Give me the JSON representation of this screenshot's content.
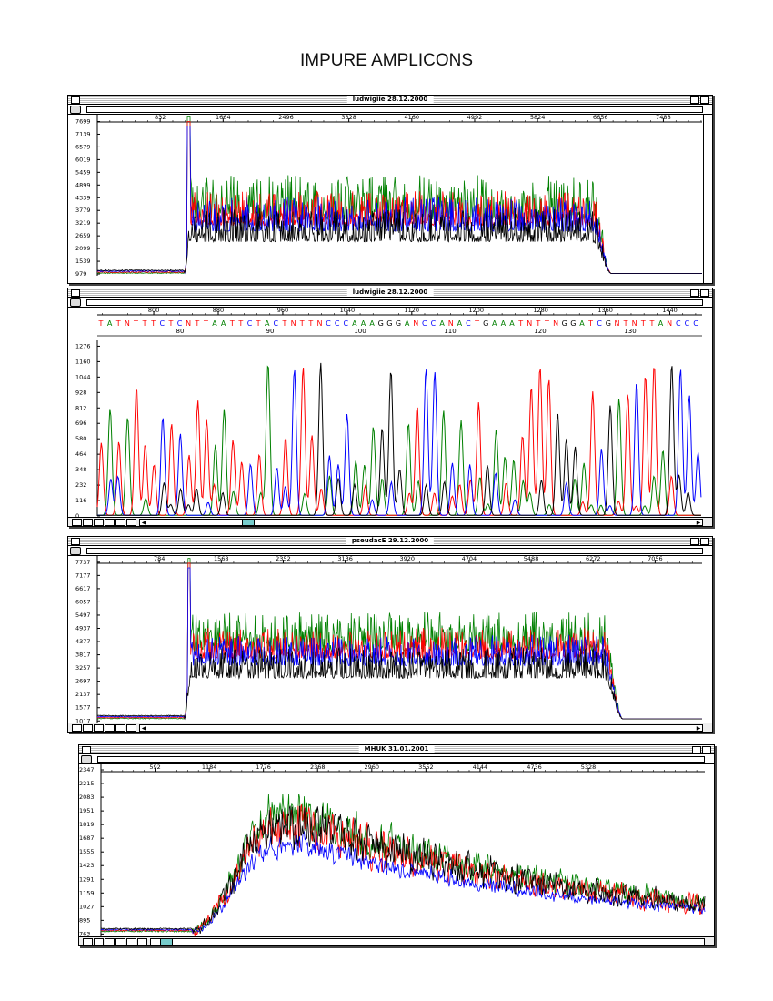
{
  "page": {
    "title": "IMPURE AMPLICONS"
  },
  "chart_data": [
    {
      "type": "line",
      "title": "ludwigiie  28.12.2000",
      "x_ticks": [
        "832",
        "1664",
        "2496",
        "3328",
        "4160",
        "4992",
        "5824",
        "6656",
        "7488"
      ],
      "y_ticks": [
        "979",
        "1539",
        "2099",
        "2659",
        "3219",
        "3779",
        "4339",
        "4899",
        "5459",
        "6019",
        "6579",
        "7139",
        "7699"
      ],
      "xlim": [
        0,
        8000
      ],
      "ylim": [
        900,
        8000
      ],
      "series": [
        {
          "color": "#008000"
        },
        {
          "color": "#ff0000"
        },
        {
          "color": "#0000ff"
        },
        {
          "color": "#000000"
        }
      ],
      "seed": 11,
      "shape": {
        "start": 1150,
        "end": 6550,
        "plat": 2600,
        "base": 1000,
        "amp": 1500
      }
    },
    {
      "type": "line",
      "title": "ludwigiie  28.12.2000",
      "x_ticks": [
        "800",
        "880",
        "960",
        "1040",
        "1120",
        "1200",
        "1280",
        "1360",
        "1440"
      ],
      "y_ticks": [
        "0",
        "116",
        "232",
        "348",
        "464",
        "580",
        "696",
        "812",
        "928",
        "1044",
        "1160",
        "1276"
      ],
      "xlim": [
        730,
        1480
      ],
      "ylim": [
        0,
        1320
      ],
      "sequence": "TATNTTTCTCNTTAATTCTACTNTTNCCCAAAGGGANCCANACTGAAATNTTNGGATCGNTNTTANCCC",
      "base_numbers": [
        "80",
        "90",
        "100",
        "110",
        "120",
        "130"
      ],
      "base_colors": {
        "A": "#008000",
        "C": "#0000ff",
        "G": "#000000",
        "T": "#ff0000",
        "N": "#ff0000"
      },
      "seed": 23
    },
    {
      "type": "line",
      "title": "pseudacE 29.12.2000",
      "x_ticks": [
        "784",
        "1568",
        "2352",
        "3136",
        "3920",
        "4704",
        "5488",
        "6272",
        "7056"
      ],
      "y_ticks": [
        "1017",
        "1577",
        "2137",
        "2697",
        "3257",
        "3817",
        "4377",
        "4937",
        "5497",
        "6057",
        "6617",
        "7177",
        "7737"
      ],
      "xlim": [
        0,
        7650
      ],
      "ylim": [
        950,
        8000
      ],
      "series": [
        {
          "color": "#008000"
        },
        {
          "color": "#ff0000"
        },
        {
          "color": "#0000ff"
        },
        {
          "color": "#000000"
        }
      ],
      "seed": 37,
      "shape": {
        "start": 1100,
        "end": 6400,
        "plat": 3000,
        "base": 1100,
        "amp": 1300
      }
    },
    {
      "type": "line",
      "title": "MHUK 31.01.2001",
      "x_ticks": [
        "592",
        "1184",
        "1776",
        "2368",
        "2960",
        "3552",
        "4144",
        "4736",
        "5328"
      ],
      "y_ticks": [
        "763",
        "895",
        "1027",
        "1159",
        "1291",
        "1423",
        "1555",
        "1687",
        "1819",
        "1951",
        "2083",
        "2215",
        "2347"
      ],
      "xlim": [
        0,
        6600
      ],
      "ylim": [
        740,
        2400
      ],
      "series": [
        {
          "color": "#008000"
        },
        {
          "color": "#ff0000"
        },
        {
          "color": "#0000ff"
        },
        {
          "color": "#000000"
        }
      ],
      "seed": 53,
      "shape": {
        "start": 1000,
        "peak": 2300,
        "base": 790
      }
    }
  ]
}
